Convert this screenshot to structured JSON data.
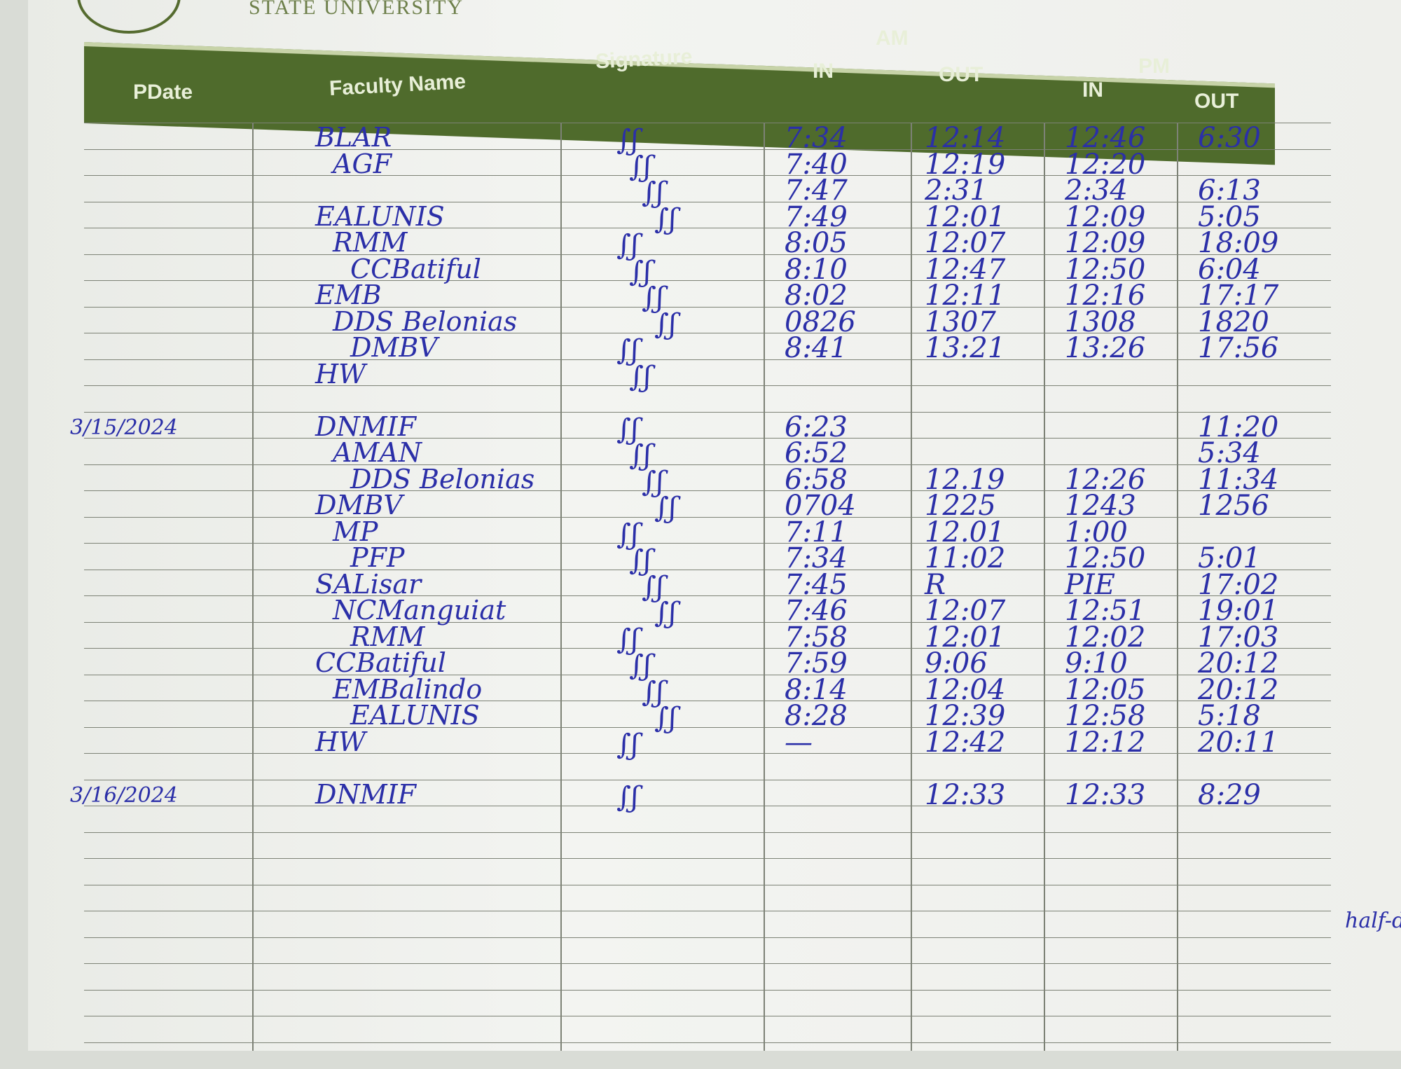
{
  "header": {
    "university": "STATE UNIVERSITY",
    "seal_text": "UNIVERSITY",
    "columns": {
      "date": "PDate",
      "name": "Faculty Name",
      "signature": "Signature",
      "am": "AM",
      "pm": "PM",
      "in": "IN",
      "out": "OUT"
    }
  },
  "blocks": [
    {
      "date": "",
      "rows": [
        {
          "name": "BLAR",
          "am_in": "7:34",
          "am_out": "12:14",
          "pm_in": "12:46",
          "pm_out": "6:30"
        },
        {
          "name": "AGF",
          "am_in": "7:40",
          "am_out": "12:19",
          "pm_in": "12:20",
          "pm_out": ""
        },
        {
          "name": "",
          "am_in": "7:47",
          "am_out": "2:31",
          "pm_in": "2:34",
          "pm_out": "6:13"
        },
        {
          "name": "EALUNIS",
          "am_in": "7:49",
          "am_out": "12:01",
          "pm_in": "12:09",
          "pm_out": "5:05"
        },
        {
          "name": "RMM",
          "am_in": "8:05",
          "am_out": "12:07",
          "pm_in": "12:09",
          "pm_out": "18:09"
        },
        {
          "name": "CCBatiful",
          "am_in": "8:10",
          "am_out": "12:47",
          "pm_in": "12:50",
          "pm_out": "6:04"
        },
        {
          "name": "EMB",
          "am_in": "8:02",
          "am_out": "12:11",
          "pm_in": "12:16",
          "pm_out": "17:17"
        },
        {
          "name": "DDS Belonias",
          "am_in": "0826",
          "am_out": "1307",
          "pm_in": "1308",
          "pm_out": "1820"
        },
        {
          "name": "DMBV",
          "am_in": "8:41",
          "am_out": "13:21",
          "pm_in": "13:26",
          "pm_out": "17:56"
        },
        {
          "name": "HW",
          "am_in": "",
          "am_out": "",
          "pm_in": "",
          "pm_out": ""
        }
      ]
    },
    {
      "date": "3/15/2024",
      "rows": [
        {
          "name": "DNMIF",
          "am_in": "6:23",
          "am_out": "",
          "pm_in": "",
          "pm_out": "11:20"
        },
        {
          "name": "AMAN",
          "am_in": "6:52",
          "am_out": "",
          "pm_in": "",
          "pm_out": "5:34"
        },
        {
          "name": "DDS Belonias",
          "am_in": "6:58",
          "am_out": "12.19",
          "pm_in": "12:26",
          "pm_out": "11:34"
        },
        {
          "name": "DMBV",
          "am_in": "0704",
          "am_out": "1225",
          "pm_in": "1243",
          "pm_out": "1256"
        },
        {
          "name": "MP",
          "am_in": "7:11",
          "am_out": "12.01",
          "pm_in": "1:00",
          "pm_out": ""
        },
        {
          "name": "PFP",
          "am_in": "7:34",
          "am_out": "11:02",
          "pm_in": "12:50",
          "pm_out": "5:01"
        },
        {
          "name": "SALisar",
          "am_in": "7:45",
          "am_out": "R",
          "pm_in": "PIE",
          "pm_out": "17:02"
        },
        {
          "name": "NCManguiat",
          "am_in": "7:46",
          "am_out": "12:07",
          "pm_in": "12:51",
          "pm_out": "19:01"
        },
        {
          "name": "RMM",
          "am_in": "7:58",
          "am_out": "12:01",
          "pm_in": "12:02",
          "pm_out": "17:03"
        },
        {
          "name": "CCBatiful",
          "am_in": "7:59",
          "am_out": "9:06",
          "pm_in": "9:10",
          "pm_out": "20:12"
        },
        {
          "name": "EMBalindo",
          "am_in": "8:14",
          "am_out": "12:04",
          "pm_in": "12:05",
          "pm_out": "20:12"
        },
        {
          "name": "EALUNIS",
          "am_in": "8:28",
          "am_out": "12:39",
          "pm_in": "12:58",
          "pm_out": "5:18"
        },
        {
          "name": "HW",
          "am_in": "—",
          "am_out": "12:42",
          "pm_in": "12:12",
          "pm_out": "20:11"
        }
      ]
    },
    {
      "date": "3/16/2024",
      "rows": [
        {
          "name": "DNMIF",
          "am_in": "",
          "am_out": "12:33",
          "pm_in": "12:33",
          "pm_out": "8:29"
        }
      ]
    }
  ],
  "margin_note": "half-day"
}
